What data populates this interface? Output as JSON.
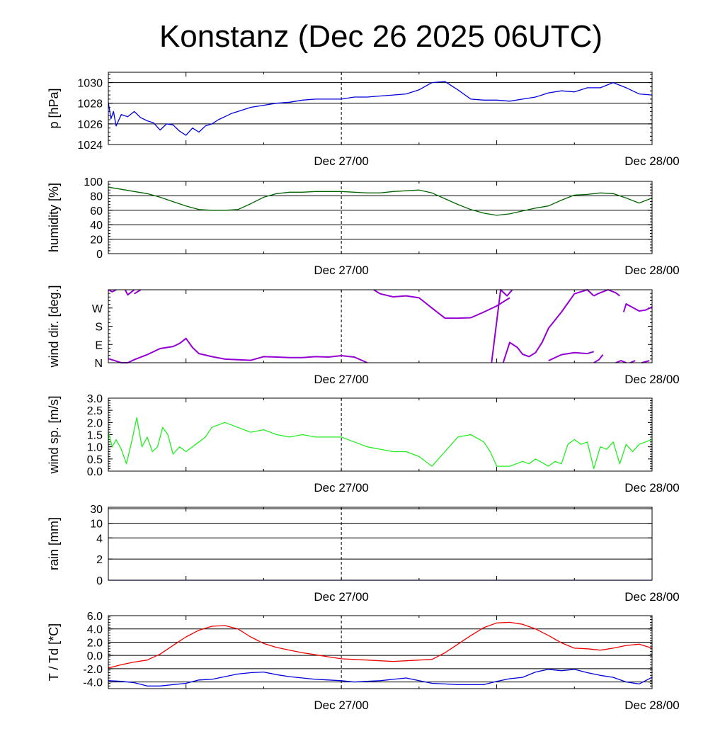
{
  "page": {
    "title": "Konstanz (Dec 26 2025 06UTC)"
  },
  "colors": {
    "pressure": "#0000dd",
    "humidity": "#006400",
    "wind_dir": "#9400d3",
    "wind_speed": "#22ee22",
    "rain": "#0000cc",
    "temperature": "#ee0000",
    "dewpoint": "#0000dd",
    "grid": "#000000"
  },
  "chart_data": [
    {
      "id": "pressure",
      "type": "line",
      "ylabel": "p [hPa]",
      "ylim": [
        1024,
        1031
      ],
      "yticks": [
        1024,
        1026,
        1028,
        1030
      ],
      "ytick_labels": [
        "1024",
        "1026",
        "1028",
        "1030"
      ],
      "gridlines": [
        1026,
        1028,
        1030
      ],
      "xlim": [
        0,
        42
      ],
      "x_ticks": [
        18,
        42
      ],
      "x_tick_labels": [
        "Dec 27/00",
        "Dec 28/00"
      ],
      "series": [
        {
          "name": "p",
          "x": [
            0,
            0.2,
            0.4,
            0.6,
            1,
            1.5,
            2,
            2.5,
            3,
            3.5,
            4,
            4.5,
            5,
            5.5,
            6,
            6.5,
            7,
            7.5,
            8,
            8.5,
            9,
            9.5,
            10,
            10.5,
            11,
            12,
            13,
            14,
            15,
            16,
            17,
            18,
            19,
            20,
            21,
            22,
            23,
            24,
            25,
            26,
            27,
            28,
            29,
            30,
            31,
            32,
            33,
            34,
            35,
            36,
            37,
            38,
            39,
            40,
            41,
            42
          ],
          "values": [
            1028.1,
            1026.5,
            1027.2,
            1025.8,
            1026.9,
            1026.7,
            1027.2,
            1026.6,
            1026.3,
            1026.1,
            1025.4,
            1026.0,
            1025.9,
            1025.3,
            1024.9,
            1025.6,
            1025.2,
            1025.8,
            1026.0,
            1026.4,
            1026.7,
            1027.0,
            1027.2,
            1027.4,
            1027.6,
            1027.8,
            1028.0,
            1028.1,
            1028.3,
            1028.4,
            1028.4,
            1028.4,
            1028.6,
            1028.6,
            1028.7,
            1028.8,
            1028.9,
            1029.3,
            1030.0,
            1030.1,
            1029.3,
            1028.4,
            1028.3,
            1028.3,
            1028.2,
            1028.4,
            1028.6,
            1029.0,
            1029.2,
            1029.1,
            1029.5,
            1029.5,
            1030.0,
            1029.5,
            1028.9,
            1028.8
          ]
        }
      ]
    },
    {
      "id": "humidity",
      "type": "line",
      "ylabel": "humidity [%]",
      "ylim": [
        0,
        100
      ],
      "yticks": [
        0,
        20,
        40,
        60,
        80,
        100
      ],
      "ytick_labels": [
        "0",
        "20",
        "40",
        "60",
        "80",
        "100"
      ],
      "gridlines": [
        20,
        40,
        60,
        80
      ],
      "xlim": [
        0,
        42
      ],
      "x_ticks": [
        18,
        42
      ],
      "x_tick_labels": [
        "Dec 27/00",
        "Dec 28/00"
      ],
      "series": [
        {
          "name": "humidity",
          "x": [
            0,
            1,
            2,
            3,
            4,
            5,
            6,
            7,
            8,
            9,
            10,
            11,
            12,
            13,
            14,
            15,
            16,
            17,
            18,
            19,
            20,
            21,
            22,
            23,
            24,
            25,
            26,
            27,
            28,
            29,
            30,
            31,
            32,
            33,
            34,
            35,
            36,
            37,
            38,
            39,
            40,
            41,
            42
          ],
          "values": [
            92,
            89,
            86,
            83,
            78,
            72,
            66,
            61,
            60,
            60,
            61,
            69,
            78,
            83,
            85,
            85,
            86,
            86,
            86,
            85,
            84,
            84,
            86,
            87,
            88,
            84,
            76,
            68,
            61,
            56,
            53,
            55,
            59,
            63,
            66,
            74,
            81,
            82,
            84,
            83,
            77,
            70,
            77
          ]
        }
      ]
    },
    {
      "id": "wind_direction",
      "type": "scatter",
      "ylabel": "wind dir. [deg.]",
      "ylim": [
        0,
        360
      ],
      "yticks": [
        0,
        90,
        180,
        270
      ],
      "ytick_labels": [
        "N",
        "E",
        "S",
        "W"
      ],
      "gridlines": [],
      "xlim": [
        0,
        42
      ],
      "x_ticks": [
        18,
        42
      ],
      "x_tick_labels": [
        "Dec 27/00",
        "Dec 28/00"
      ],
      "series": [
        {
          "name": "wind_dir_1",
          "x": [
            0,
            0.5,
            1,
            1.5,
            2,
            3,
            4,
            5,
            5.5,
            6,
            6.5,
            7,
            8,
            9,
            10,
            11,
            12,
            13,
            14,
            15,
            16,
            17,
            18,
            19,
            20
          ],
          "values": [
            20,
            10,
            0,
            0,
            15,
            40,
            70,
            80,
            95,
            120,
            75,
            45,
            30,
            18,
            15,
            12,
            30,
            28,
            25,
            25,
            30,
            28,
            35,
            28,
            0
          ]
        },
        {
          "name": "wind_dir_2",
          "x": [
            0,
            0.3,
            0.6
          ],
          "values": [
            360,
            350,
            360
          ]
        },
        {
          "name": "wind_dir_3",
          "x": [
            1.3,
            1.5,
            1.8,
            2
          ],
          "values": [
            360,
            335,
            350,
            360
          ]
        },
        {
          "name": "wind_dir_4",
          "x": [
            2,
            2.5
          ],
          "values": [
            340,
            360
          ]
        },
        {
          "name": "wind_dir_5",
          "x": [
            20.5,
            21,
            22,
            23,
            24,
            25,
            26,
            27,
            28,
            29,
            30,
            31
          ],
          "values": [
            360,
            340,
            325,
            330,
            320,
            270,
            220,
            220,
            222,
            250,
            280,
            320
          ]
        },
        {
          "name": "wind_dir_6",
          "x": [
            29.6,
            30.3,
            30.8,
            31.2
          ],
          "values": [
            0,
            360,
            330,
            360
          ]
        },
        {
          "name": "wind_dir_7",
          "x": [
            30.5,
            31,
            31.6,
            32,
            32.5,
            33,
            33.5,
            34,
            35,
            36,
            37,
            37.5
          ],
          "values": [
            0,
            100,
            75,
            42,
            30,
            50,
            100,
            170,
            250,
            340,
            360,
            330
          ]
        },
        {
          "name": "wind_dir_8",
          "x": [
            34,
            35,
            36,
            37,
            37.5
          ],
          "values": [
            10,
            40,
            50,
            45,
            55
          ]
        },
        {
          "name": "wind_dir_9",
          "x": [
            37.5,
            37.9,
            38.2
          ],
          "values": [
            0,
            15,
            40
          ]
        },
        {
          "name": "wind_dir_10",
          "x": [
            37.5,
            37.8,
            38.6,
            39.2,
            39.5
          ],
          "values": [
            330,
            340,
            360,
            345,
            330
          ]
        },
        {
          "name": "wind_dir_11",
          "x": [
            39.8,
            40,
            41,
            41.5,
            42
          ],
          "values": [
            250,
            290,
            255,
            260,
            275
          ]
        },
        {
          "name": "wind_dir_12",
          "x": [
            39.2,
            39.6,
            40
          ],
          "values": [
            0,
            10,
            0
          ]
        },
        {
          "name": "wind_dir_13",
          "x": [
            40.3,
            40.7
          ],
          "values": [
            0,
            10
          ]
        },
        {
          "name": "wind_dir_14",
          "x": [
            41.2,
            41.8
          ],
          "values": [
            0,
            10
          ]
        }
      ]
    },
    {
      "id": "wind_speed",
      "type": "line",
      "ylabel": "wind sp. [m/s]",
      "ylim": [
        0,
        3
      ],
      "yticks": [
        0,
        0.5,
        1,
        1.5,
        2,
        2.5,
        3
      ],
      "ytick_labels": [
        "0.0",
        "0.5",
        "1.0",
        "1.5",
        "2.0",
        "2.5",
        "3.0"
      ],
      "gridlines": [],
      "xlim": [
        0,
        42
      ],
      "x_ticks": [
        18,
        42
      ],
      "x_tick_labels": [
        "Dec 27/00",
        "Dec 28/00"
      ],
      "series": [
        {
          "name": "wind speed",
          "x": [
            0,
            0.3,
            0.6,
            1,
            1.4,
            1.8,
            2.2,
            2.6,
            3,
            3.4,
            3.8,
            4.2,
            4.6,
            5,
            5.5,
            6,
            6.5,
            7,
            7.5,
            8,
            8.5,
            9,
            10,
            11,
            12,
            13,
            14,
            15,
            16,
            17,
            18,
            19,
            20,
            21,
            22,
            23,
            24,
            25,
            26,
            27,
            28,
            29,
            29.5,
            30,
            31,
            32,
            32.5,
            33,
            34,
            34.5,
            35,
            35.5,
            36,
            36.5,
            37,
            37.5,
            38,
            38.5,
            39,
            39.5,
            40,
            40.5,
            41,
            42
          ],
          "values": [
            1.6,
            1.0,
            1.3,
            0.9,
            0.3,
            1.2,
            2.2,
            1.0,
            1.4,
            0.8,
            1.0,
            1.8,
            1.5,
            0.7,
            1.0,
            0.8,
            1.0,
            1.2,
            1.4,
            1.8,
            1.9,
            2.0,
            1.8,
            1.6,
            1.7,
            1.5,
            1.4,
            1.5,
            1.4,
            1.4,
            1.4,
            1.2,
            1.0,
            0.9,
            0.8,
            0.8,
            0.6,
            0.2,
            0.8,
            1.4,
            1.5,
            1.2,
            0.8,
            0.2,
            0.2,
            0.4,
            0.3,
            0.5,
            0.2,
            0.4,
            0.3,
            1.1,
            1.3,
            1.1,
            1.2,
            0.1,
            1.0,
            0.9,
            1.2,
            0.3,
            1.1,
            0.8,
            1.1,
            1.3
          ]
        }
      ]
    },
    {
      "id": "rain",
      "type": "line",
      "ylabel": "rain [mm]",
      "scale": "custom",
      "ylim": [
        0,
        30
      ],
      "yticks": [
        0,
        2,
        4,
        10,
        30
      ],
      "ytick_labels": [
        "0",
        "2",
        "4",
        "10",
        "30"
      ],
      "gridlines": [
        2,
        4,
        10,
        30
      ],
      "xlim": [
        0,
        42
      ],
      "x_ticks": [
        18,
        42
      ],
      "x_tick_labels": [
        "Dec 27/00",
        "Dec 28/00"
      ],
      "series": [
        {
          "name": "rain",
          "x": [
            0,
            42
          ],
          "values": [
            0,
            0
          ]
        }
      ]
    },
    {
      "id": "temperature",
      "type": "line",
      "ylabel": "T / Td [*C]",
      "ylim": [
        -5,
        6
      ],
      "yticks": [
        -4,
        -2,
        0,
        2,
        4,
        6
      ],
      "ytick_labels": [
        "-4.0",
        "-2.0",
        "0.0",
        "2.0",
        "4.0",
        "6.0"
      ],
      "gridlines": [
        -4,
        -2,
        0,
        2,
        4
      ],
      "xlim": [
        0,
        42
      ],
      "x_ticks": [
        18,
        42
      ],
      "x_tick_labels": [
        "Dec 27/00",
        "Dec 28/00"
      ],
      "series": [
        {
          "name": "T",
          "x": [
            0,
            1,
            2,
            3,
            4,
            5,
            6,
            7,
            8,
            9,
            10,
            11,
            12,
            13,
            14,
            15,
            16,
            17,
            18,
            19,
            20,
            21,
            22,
            23,
            24,
            25,
            26,
            27,
            28,
            29,
            30,
            31,
            32,
            33,
            34,
            35,
            36,
            37,
            38,
            39,
            40,
            41,
            42
          ],
          "values": [
            -1.9,
            -1.4,
            -1.0,
            -0.7,
            0.2,
            1.5,
            2.8,
            3.8,
            4.4,
            4.5,
            4.0,
            2.8,
            1.8,
            1.2,
            0.8,
            0.4,
            0.1,
            -0.2,
            -0.5,
            -0.6,
            -0.7,
            -0.8,
            -0.9,
            -0.8,
            -0.7,
            -0.6,
            0.4,
            1.7,
            3.0,
            4.2,
            4.9,
            5.0,
            4.7,
            4.0,
            3.0,
            1.9,
            1.1,
            1.0,
            0.8,
            1.1,
            1.5,
            1.7,
            1.1
          ]
        },
        {
          "name": "Td",
          "x": [
            0,
            1,
            2,
            3,
            4,
            5,
            6,
            7,
            8,
            9,
            10,
            11,
            12,
            13,
            14,
            15,
            16,
            17,
            18,
            19,
            20,
            21,
            22,
            23,
            24,
            25,
            26,
            27,
            28,
            29,
            30,
            31,
            32,
            33,
            34,
            35,
            36,
            37,
            38,
            39,
            40,
            41,
            42
          ],
          "values": [
            -3.8,
            -3.9,
            -4.1,
            -4.6,
            -4.6,
            -4.4,
            -4.2,
            -3.7,
            -3.6,
            -3.2,
            -2.8,
            -2.6,
            -2.5,
            -2.9,
            -3.2,
            -3.4,
            -3.6,
            -3.7,
            -3.8,
            -4.0,
            -3.9,
            -3.8,
            -3.6,
            -3.4,
            -3.8,
            -4.2,
            -4.3,
            -4.4,
            -4.4,
            -4.4,
            -3.9,
            -3.5,
            -3.3,
            -2.5,
            -2.1,
            -2.3,
            -2.1,
            -2.6,
            -3.0,
            -3.3,
            -4.0,
            -4.3,
            -3.3
          ]
        }
      ]
    }
  ]
}
